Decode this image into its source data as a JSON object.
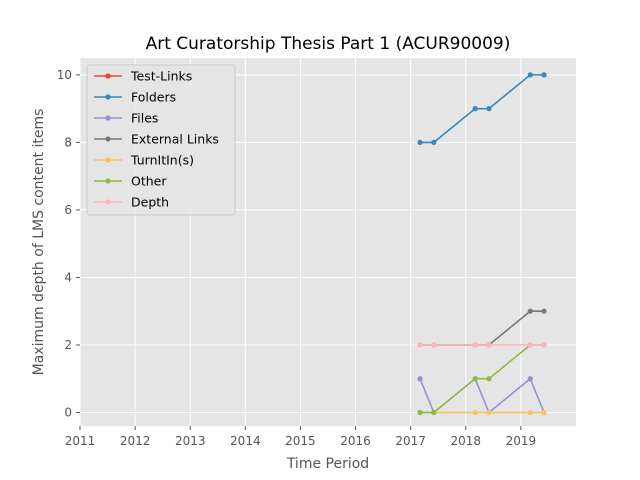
{
  "chart_data": {
    "type": "line",
    "title": "Art Curatorship Thesis Part 1 (ACUR90009)",
    "xlabel": "Time Period",
    "ylabel": "Maximum depth of LMS content items",
    "xlim": [
      2011,
      2020
    ],
    "ylim": [
      -0.4,
      10.5
    ],
    "x_ticks": [
      2011,
      2012,
      2013,
      2014,
      2015,
      2016,
      2017,
      2018,
      2019
    ],
    "y_ticks": [
      0,
      2,
      4,
      6,
      8,
      10
    ],
    "grid": true,
    "legend_position": "top-left",
    "x": [
      2017.17,
      2017.42,
      2018.17,
      2018.42,
      2019.17,
      2019.42
    ],
    "series": [
      {
        "name": "Test-Links",
        "color": "#e24a33",
        "values": [
          null,
          null,
          null,
          null,
          null,
          null
        ]
      },
      {
        "name": "Folders",
        "color": "#348abd",
        "values": [
          8,
          8,
          9,
          9,
          10,
          10
        ]
      },
      {
        "name": "Files",
        "color": "#988ed5",
        "values": [
          1,
          0,
          1,
          0,
          1,
          0
        ]
      },
      {
        "name": "External Links",
        "color": "#777777",
        "values": [
          2,
          2,
          2,
          2,
          3,
          3
        ]
      },
      {
        "name": "TurnItIn(s)",
        "color": "#fbc15e",
        "values": [
          0,
          0,
          0,
          0,
          0,
          0
        ]
      },
      {
        "name": "Other",
        "color": "#8eba42",
        "values": [
          0,
          0,
          1,
          1,
          2,
          2
        ]
      },
      {
        "name": "Depth",
        "color": "#ffb5b8",
        "values": [
          2,
          2,
          2,
          2,
          2,
          2
        ]
      }
    ]
  }
}
